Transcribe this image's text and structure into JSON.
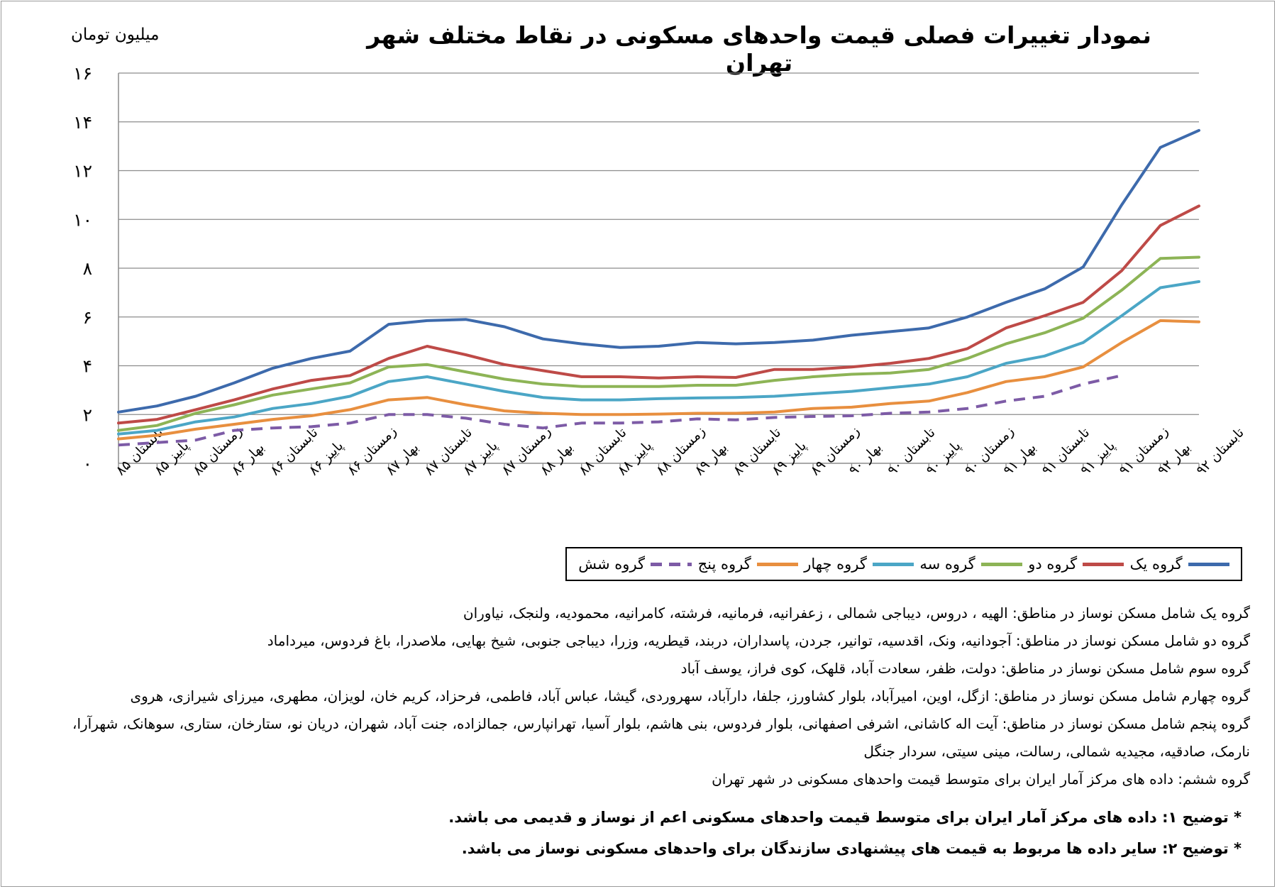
{
  "chart_data": {
    "type": "line",
    "title": "نمودار تغییرات فصلی قیمت واحدهای مسکونی در نقاط مختلف شهر تهران",
    "ylabel": "میلیون تومان",
    "xlabel": "",
    "ylim": [
      0,
      16
    ],
    "yticks": [
      0,
      2,
      4,
      6,
      8,
      10,
      12,
      14,
      16
    ],
    "ytick_labels": [
      "۰",
      "۲",
      "۴",
      "۶",
      "۸",
      "۱۰",
      "۱۲",
      "۱۴",
      "۱۶"
    ],
    "grid": true,
    "legend_position": "bottom-right",
    "categories": [
      "تابستان ۸۵",
      "پاییز ۸۵",
      "زمستان ۸۵",
      "بهار ۸۶",
      "تابستان ۸۶",
      "پاییز ۸۶",
      "زمستان ۸۶",
      "بهار ۸۷",
      "تابستان ۸۷",
      "پاییز ۸۷",
      "زمستان ۸۷",
      "بهار ۸۸",
      "تابستان ۸۸",
      "پاییز ۸۸",
      "زمستان ۸۸",
      "بهار ۸۹",
      "تابستان ۸۹",
      "پاییز ۸۹",
      "زمستان ۸۹",
      "بهار ۹۰",
      "تابستان ۹۰",
      "پاییز ۹۰",
      "زمستان ۹۰",
      "بهار ۹۱",
      "تابستان ۹۱",
      "پاییز ۹۱",
      "زمستان ۹۱",
      "بهار ۹۲",
      "تابستان ۹۲"
    ],
    "series": [
      {
        "name": "گروه یک",
        "color": "#3d6aac",
        "dashed": false,
        "values": [
          2.1,
          2.35,
          2.75,
          3.3,
          3.9,
          4.3,
          4.6,
          5.7,
          5.85,
          5.9,
          5.6,
          5.1,
          4.9,
          4.75,
          4.8,
          4.95,
          4.9,
          4.95,
          5.05,
          5.25,
          5.4,
          5.55,
          6.0,
          6.6,
          7.15,
          8.05,
          10.6,
          12.95,
          13.65
        ]
      },
      {
        "name": "گروه دو",
        "color": "#be4a47",
        "dashed": false,
        "values": [
          1.65,
          1.8,
          2.2,
          2.6,
          3.05,
          3.4,
          3.6,
          4.3,
          4.8,
          4.45,
          4.05,
          3.8,
          3.55,
          3.55,
          3.5,
          3.55,
          3.52,
          3.85,
          3.85,
          3.95,
          4.1,
          4.3,
          4.7,
          5.55,
          6.05,
          6.6,
          7.9,
          9.75,
          10.55
        ]
      },
      {
        "name": "گروه سه",
        "color": "#8db456",
        "dashed": false,
        "values": [
          1.35,
          1.55,
          2.05,
          2.4,
          2.8,
          3.05,
          3.3,
          3.95,
          4.05,
          3.75,
          3.45,
          3.25,
          3.15,
          3.15,
          3.15,
          3.2,
          3.2,
          3.4,
          3.55,
          3.65,
          3.7,
          3.85,
          4.3,
          4.9,
          5.35,
          5.95,
          7.1,
          8.4,
          8.45
        ]
      },
      {
        "name": "گروه چهار",
        "color": "#4ba6c6",
        "dashed": false,
        "values": [
          1.2,
          1.35,
          1.7,
          1.9,
          2.25,
          2.45,
          2.75,
          3.35,
          3.55,
          3.25,
          2.95,
          2.7,
          2.6,
          2.6,
          2.65,
          2.68,
          2.7,
          2.75,
          2.85,
          2.95,
          3.1,
          3.25,
          3.55,
          4.1,
          4.4,
          4.95,
          6.05,
          7.2,
          7.45
        ]
      },
      {
        "name": "گروه پنج",
        "color": "#e88f3f",
        "dashed": false,
        "values": [
          1.0,
          1.15,
          1.4,
          1.6,
          1.8,
          1.95,
          2.2,
          2.6,
          2.7,
          2.4,
          2.15,
          2.05,
          2.0,
          2.0,
          2.02,
          2.05,
          2.05,
          2.1,
          2.25,
          2.3,
          2.45,
          2.55,
          2.9,
          3.35,
          3.55,
          3.95,
          4.95,
          5.85,
          5.8
        ]
      },
      {
        "name": "گروه شش",
        "color": "#7d5ba6",
        "dashed": true,
        "values": [
          0.75,
          0.85,
          0.95,
          1.35,
          1.45,
          1.5,
          1.65,
          2.0,
          2.0,
          1.85,
          1.6,
          1.45,
          1.65,
          1.65,
          1.7,
          1.82,
          1.78,
          1.88,
          1.92,
          1.95,
          2.05,
          2.1,
          2.25,
          2.55,
          2.75,
          3.25,
          3.6,
          null,
          null
        ]
      }
    ]
  },
  "notes": [
    "گروه یک شامل مسکن نوساز در مناطق: الهیه ، دروس، دیباجی شمالی ، زعفرانیه، فرمانیه، فرشته، کامرانیه، محمودیه، ولنجک، نیاوران",
    "گروه دو شامل مسکن نوساز در مناطق: آجودانیه، ونک، اقدسیه، توانیر، جردن، پاسداران، دربند، قیطریه، وزرا، دیباجی جنوبی، شیخ بهایی، ملاصدرا، باغ فردوس، میرداماد",
    "گروه سوم شامل مسکن نوساز در مناطق: دولت، ظفر، سعادت آباد، قلهک، کوی فراز، یوسف آباد",
    "گروه چهارم شامل مسکن نوساز در مناطق: ازگل، اوین، امیرآباد، بلوار کشاورز، جلفا، دارآباد، سهروردی، گیشا، عباس آباد، فاطمی، فرحزاد، کریم خان، لویزان، مطهری، میرزای شیرازی، هروی",
    "گروه پنجم شامل مسکن نوساز در مناطق: آیت اله کاشانی، اشرفی اصفهانی، بلوار فردوس، بنی هاشم، بلوار آسیا، تهرانپارس، جمالزاده، جنت آباد، شهران، دریان نو، ستارخان، ستاری، سوهانک، شهرآرا، نارمک، صادقیه، مجیدیه شمالی، رسالت، مینی سیتی، سردار جنگل",
    "گروه ششم: داده های مرکز آمار ایران برای متوسط قیمت واحدهای مسکونی در شهر تهران"
  ],
  "remarks": [
    "* توضیح ۱: داده های مرکز آمار ایران برای متوسط قیمت واحدهای  مسکونی اعم از نوساز و قدیمی می باشد.",
    "* توضیح ۲:  سایر داده ها مربوط به قیمت های پیشنهادی سازندگان برای واحدهای مسکونی نوساز می باشد."
  ]
}
